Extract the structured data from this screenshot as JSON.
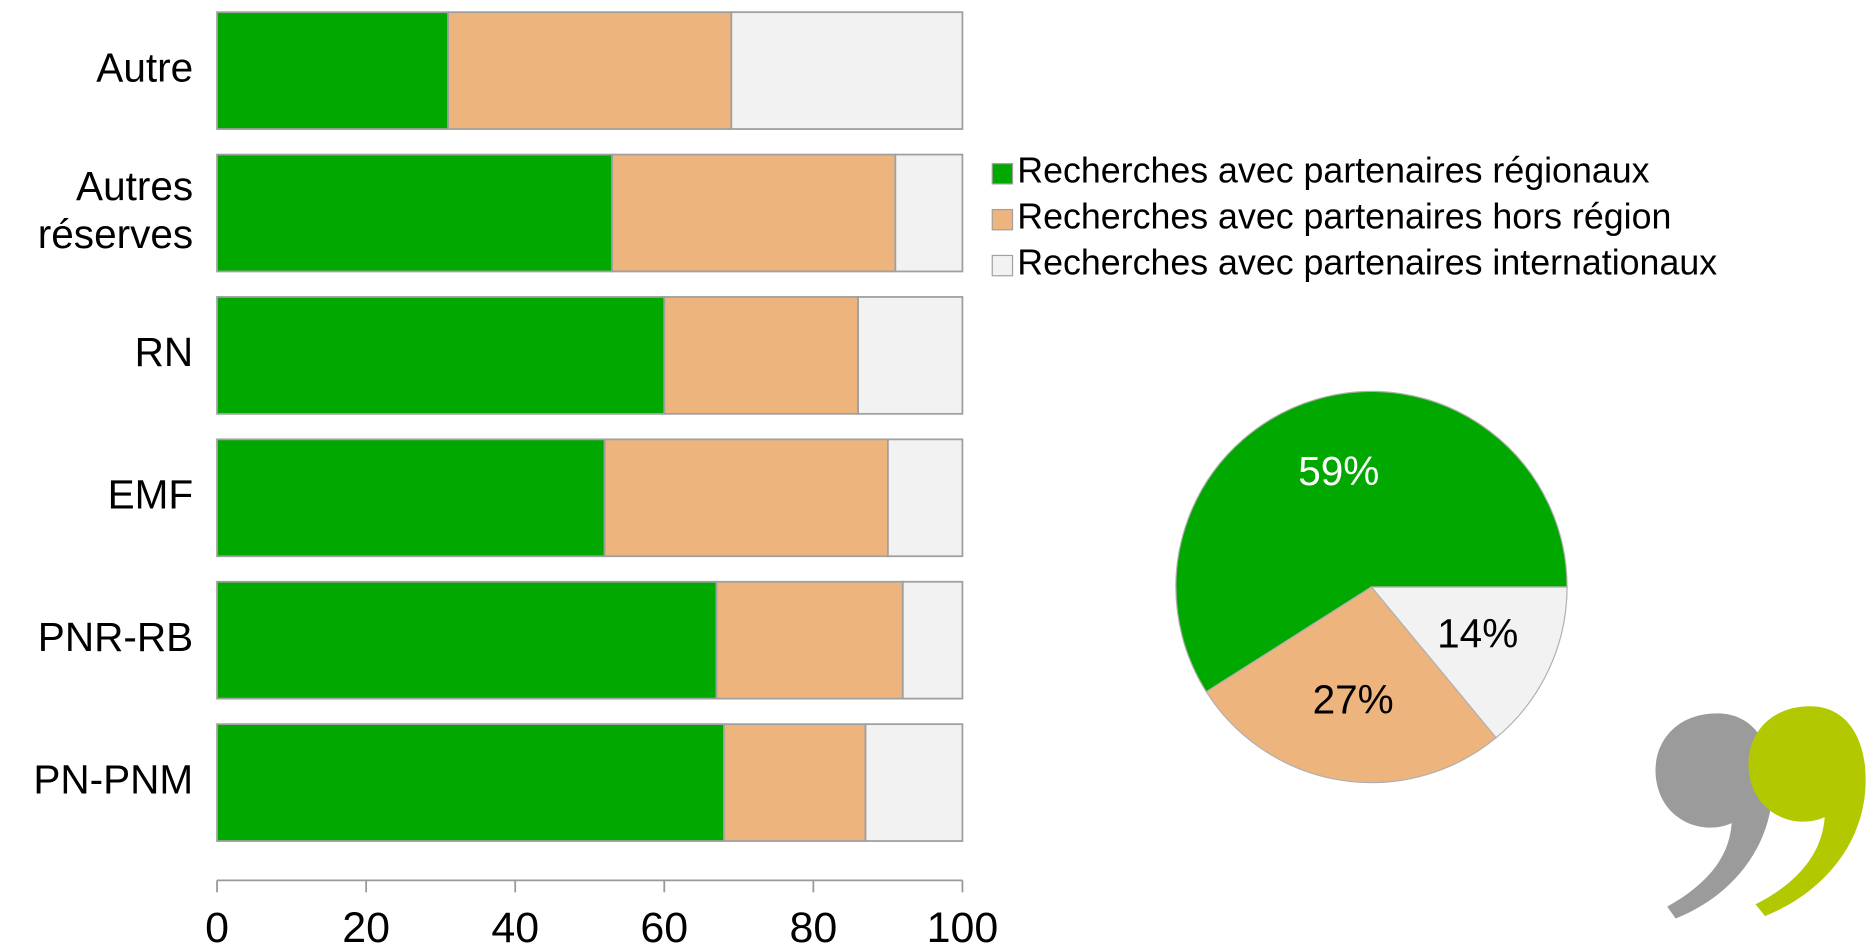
{
  "chart_data": [
    {
      "type": "bar",
      "orientation": "horizontal",
      "stacked": true,
      "categories": [
        "Autre",
        "Autres réserves",
        "RN",
        "EMF",
        "PNR-RB",
        "PN-PNM"
      ],
      "series": [
        {
          "name": "Recherches avec partenaires régionaux",
          "color": "#00a800",
          "values": [
            31,
            53,
            60,
            52,
            67,
            68
          ]
        },
        {
          "name": "Recherches avec partenaires hors région",
          "color": "#edb47e",
          "values": [
            38,
            38,
            26,
            38,
            25,
            19
          ]
        },
        {
          "name": "Recherches avec partenaires internationaux",
          "color": "#f2f2f2",
          "values": [
            31,
            9,
            14,
            10,
            8,
            13
          ]
        }
      ],
      "xlim": [
        0,
        100
      ],
      "xticks": [
        0,
        20,
        40,
        60,
        80,
        100
      ],
      "legend": "right"
    },
    {
      "type": "pie",
      "values": [
        59,
        27,
        14
      ],
      "value_labels": [
        "59%",
        "27%",
        "14%"
      ],
      "colors": [
        "#00a800",
        "#edb47e",
        "#f2f2f2"
      ],
      "label_colors": [
        "#ffffff",
        "#000000",
        "#000000"
      ]
    }
  ]
}
